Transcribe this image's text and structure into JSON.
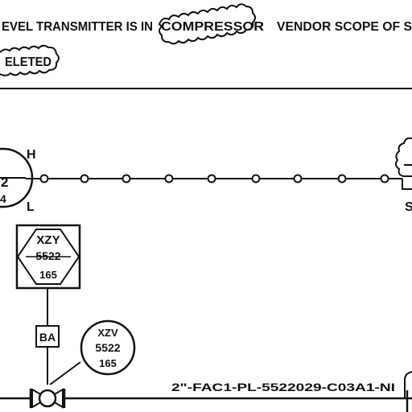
{
  "note": {
    "line1_prefix": "EVEL TRANSMITTER IS IN",
    "line1_cloud": "COMPRESSOR",
    "line1_suffix": "VENDOR SCOPE OF S",
    "line2_cloud": "ELETED"
  },
  "left_instrument": {
    "partial_digits_top": "2",
    "partial_digits_bottom": "4",
    "high_label": "H",
    "low_label": "L"
  },
  "interlock": {
    "tag": "XZY",
    "number": "5522",
    "sub": "165"
  },
  "air_supply": {
    "label": "BA"
  },
  "valve_actuator": {
    "tag": "XZV",
    "number": "5522",
    "sub": "165"
  },
  "pipe": {
    "line_number": "2\"-FAC1-PL-5522029-C03A1-NI"
  },
  "right_instrument": {
    "partial_letter": "S"
  },
  "colors": {
    "ink": "#111111",
    "background": "#ffffff"
  }
}
